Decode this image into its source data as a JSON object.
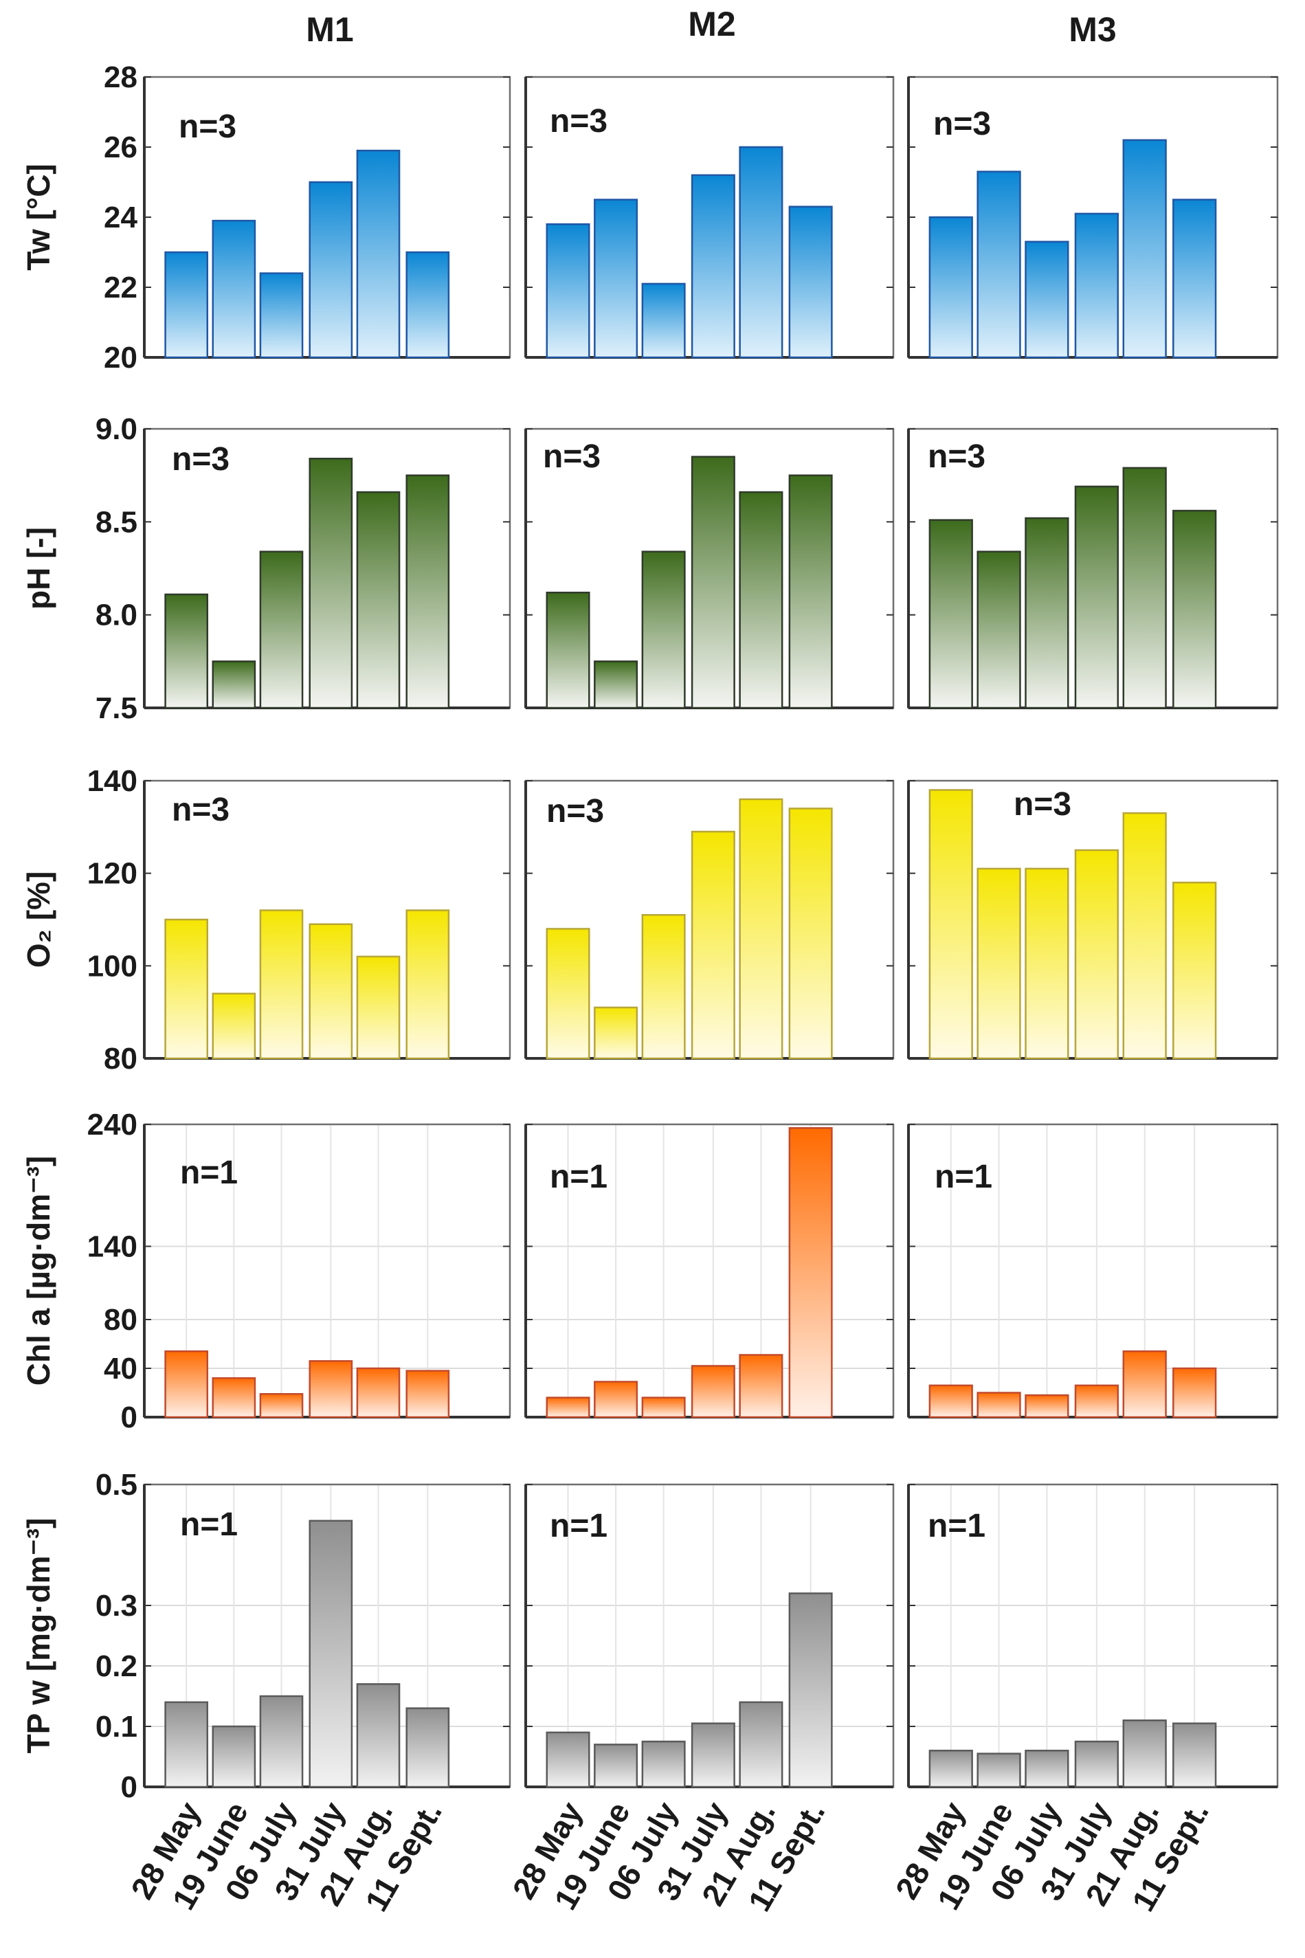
{
  "columns": [
    "M1",
    "M2",
    "M3"
  ],
  "categories": [
    "28 May",
    "19 June",
    "06 July",
    "31 July",
    "21 Aug.",
    "11 Sept."
  ],
  "chart_data": [
    {
      "type": "bar",
      "ylabel": "Tw [°C]",
      "ylim": [
        20,
        28
      ],
      "ticks": [
        "20",
        "22",
        "24",
        "26",
        "28"
      ],
      "grid": false,
      "colors": {
        "top": "#0a86d4",
        "bottom": "#dff0fb",
        "stroke": "#1f57a5"
      },
      "categories": [
        "28 May",
        "19 June",
        "06 July",
        "31 July",
        "21 Aug.",
        "11 Sept."
      ],
      "series": [
        {
          "name": "M1",
          "label": "n=3",
          "values": [
            23.0,
            23.9,
            22.4,
            25.0,
            25.9,
            23.0
          ]
        },
        {
          "name": "M2",
          "label": "n=3",
          "values": [
            23.8,
            24.5,
            22.1,
            25.2,
            26.0,
            24.3
          ]
        },
        {
          "name": "M3",
          "label": "n=3",
          "values": [
            24.0,
            25.3,
            23.3,
            24.1,
            26.2,
            24.5
          ]
        }
      ]
    },
    {
      "type": "bar",
      "ylabel": "pH [-]",
      "ylim": [
        7.5,
        9.0
      ],
      "ticks": [
        "7.5",
        "8.0",
        "8.5",
        "9.0"
      ],
      "grid": false,
      "colors": {
        "top": "#3d6b1c",
        "bottom": "#f4f5f2",
        "stroke": "#2f3a2a"
      },
      "categories": [
        "28 May",
        "19 June",
        "06 July",
        "31 July",
        "21 Aug.",
        "11 Sept."
      ],
      "series": [
        {
          "name": "M1",
          "label": "n=3",
          "values": [
            8.11,
            7.75,
            8.34,
            8.84,
            8.66,
            8.75
          ]
        },
        {
          "name": "M2",
          "label": "n=3",
          "values": [
            8.12,
            7.75,
            8.34,
            8.85,
            8.66,
            8.75
          ]
        },
        {
          "name": "M3",
          "label": "n=3",
          "values": [
            8.51,
            8.34,
            8.52,
            8.69,
            8.79,
            8.56
          ]
        }
      ]
    },
    {
      "type": "bar",
      "ylabel": "O₂ [%]",
      "ylim": [
        80,
        140
      ],
      "ticks": [
        "80",
        "100",
        "120",
        "140"
      ],
      "grid": false,
      "colors": {
        "top": "#f5e600",
        "bottom": "#fffbe6",
        "stroke": "#b7a637"
      },
      "categories": [
        "28 May",
        "19 June",
        "06 July",
        "31 July",
        "21 Aug.",
        "11 Sept."
      ],
      "series": [
        {
          "name": "M1",
          "label": "n=3",
          "values": [
            110,
            94,
            112,
            109,
            102,
            112
          ]
        },
        {
          "name": "M2",
          "label": "n=3",
          "values": [
            108,
            91,
            111,
            129,
            136,
            134
          ]
        },
        {
          "name": "M3",
          "label": "n=3",
          "values": [
            138,
            121,
            121,
            125,
            133,
            118
          ]
        }
      ]
    },
    {
      "type": "bar",
      "ylabel": "Chl a [µg·dm⁻³]",
      "ylim": [
        0,
        240
      ],
      "ticks": [
        "0",
        "40",
        "80",
        "140",
        "240"
      ],
      "grid": true,
      "colors": {
        "top": "#ff6a00",
        "bottom": "#fff0e8",
        "stroke": "#c24a2c"
      },
      "categories": [
        "28 May",
        "19 June",
        "06 July",
        "31 July",
        "21 Aug.",
        "11 Sept."
      ],
      "series": [
        {
          "name": "M1",
          "label": "n=1",
          "values": [
            54,
            32,
            19,
            46,
            40,
            38
          ]
        },
        {
          "name": "M2",
          "label": "n=1",
          "values": [
            16,
            29,
            16,
            42,
            51,
            237
          ]
        },
        {
          "name": "M3",
          "label": "n=1",
          "values": [
            26,
            20,
            18,
            26,
            54,
            40
          ]
        }
      ]
    },
    {
      "type": "bar",
      "ylabel": "TP w [mg·dm⁻³]",
      "ylim": [
        0,
        0.5
      ],
      "ticks": [
        "0",
        "0.1",
        "0.2",
        "0.3",
        "0.5"
      ],
      "grid": true,
      "colors": {
        "top": "#8f8f8f",
        "bottom": "#f2f2f2",
        "stroke": "#5a5a5a"
      },
      "categories": [
        "28 May",
        "19 June",
        "06 July",
        "31 July",
        "21 Aug.",
        "11 Sept."
      ],
      "series": [
        {
          "name": "M1",
          "label": "n=1",
          "values": [
            0.14,
            0.1,
            0.15,
            0.44,
            0.17,
            0.13
          ]
        },
        {
          "name": "M2",
          "label": "n=1",
          "values": [
            0.09,
            0.07,
            0.075,
            0.105,
            0.14,
            0.32
          ]
        },
        {
          "name": "M3",
          "label": "n=1",
          "values": [
            0.06,
            0.055,
            0.06,
            0.075,
            0.11,
            0.105
          ]
        }
      ]
    }
  ]
}
